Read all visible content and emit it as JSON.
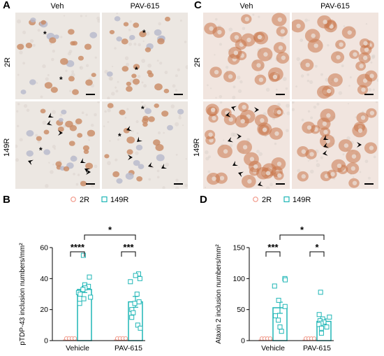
{
  "panels": {
    "A": {
      "letter": "A",
      "col_labels": [
        "Veh",
        "PAV-615"
      ],
      "row_labels": [
        "2R",
        "149R"
      ]
    },
    "B": {
      "letter": "B"
    },
    "C": {
      "letter": "C",
      "col_labels": [
        "Veh",
        "PAV-615"
      ],
      "row_labels": [
        "2R",
        "149R"
      ]
    },
    "D": {
      "letter": "D"
    }
  },
  "colors": {
    "group_2R": "#f29b8c",
    "group_149R": "#1fb6b6",
    "tissue_A": "#ece7e2",
    "tissue_C": "#f1e5df",
    "nucleus_A": "#c98a63",
    "cell_C": "#c8764a"
  },
  "chart_data": [
    {
      "type": "bar",
      "panel": "B",
      "categories": [
        "Vehicle",
        "PAV-615"
      ],
      "ylabel": "pTDP-43 inclusion numbers/mm²",
      "ylim": [
        0,
        60
      ],
      "yticks": [
        0,
        20,
        40,
        60
      ],
      "legend": [
        "2R",
        "149R"
      ],
      "series": [
        {
          "name": "2R",
          "values": [
            0.5,
            0.5
          ],
          "points": [
            [
              0.5,
              0.5,
              0.5,
              0.5
            ],
            [
              0.5,
              0.5,
              0.5,
              0.5
            ]
          ]
        },
        {
          "name": "149R",
          "values": [
            33,
            25
          ],
          "errors": [
            2,
            3.5
          ],
          "points": [
            [
              55,
              41,
              36,
              35,
              34,
              33,
              31,
              30,
              28,
              27,
              24
            ],
            [
              43,
              42,
              40,
              38,
              30,
              25,
              24,
              20,
              18,
              15,
              10,
              8
            ]
          ]
        }
      ],
      "significance": [
        {
          "label": "****",
          "level": "within",
          "group": 0
        },
        {
          "label": "***",
          "level": "within",
          "group": 1
        },
        {
          "label": "*",
          "level": "between"
        }
      ]
    },
    {
      "type": "bar",
      "panel": "D",
      "categories": [
        "Vehicle",
        "PAV-615"
      ],
      "ylabel": "Ataxin 2 inclusion numbers/mm²",
      "ylim": [
        0,
        150
      ],
      "yticks": [
        0,
        50,
        100,
        150
      ],
      "legend": [
        "2R",
        "149R"
      ],
      "series": [
        {
          "name": "2R",
          "values": [
            1,
            1
          ],
          "points": [
            [
              1,
              1,
              1,
              1
            ],
            [
              1,
              1,
              1,
              1
            ]
          ]
        },
        {
          "name": "149R",
          "values": [
            53,
            31
          ],
          "errors": [
            9,
            4
          ],
          "points": [
            [
              100,
              98,
              88,
              65,
              55,
              40,
              33,
              22,
              15
            ],
            [
              78,
              42,
              38,
              35,
              32,
              30,
              28,
              26,
              22,
              20,
              12
            ]
          ]
        }
      ],
      "significance": [
        {
          "label": "***",
          "level": "within",
          "group": 0
        },
        {
          "label": "*",
          "level": "within",
          "group": 1
        },
        {
          "label": "*",
          "level": "between"
        }
      ]
    }
  ]
}
